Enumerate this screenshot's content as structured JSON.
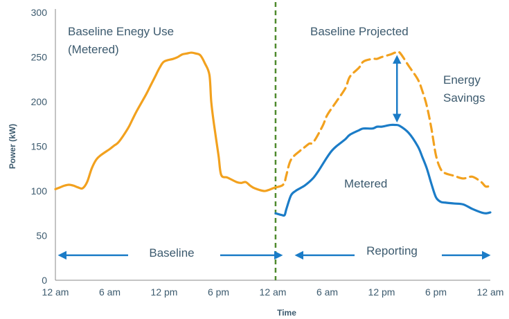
{
  "chart_data": {
    "type": "line",
    "xlabel": "Time",
    "ylabel": "Power (kW)",
    "ylim": [
      0,
      300
    ],
    "xlim": [
      0,
      48
    ],
    "y_ticks": [
      0,
      50,
      100,
      150,
      200,
      250,
      300
    ],
    "x_ticks": [
      {
        "x": 0,
        "label": "12 am"
      },
      {
        "x": 6,
        "label": "6 am"
      },
      {
        "x": 12,
        "label": "12 pm"
      },
      {
        "x": 18,
        "label": "6 pm"
      },
      {
        "x": 24,
        "label": "12 am"
      },
      {
        "x": 30,
        "label": "6 am"
      },
      {
        "x": 36,
        "label": "12 pm"
      },
      {
        "x": 42,
        "label": "6 pm"
      },
      {
        "x": 48,
        "label": "12 am"
      }
    ],
    "grid": false,
    "divider_x": 24.3,
    "series": [
      {
        "name": "Baseline Enegy Use (Metered)",
        "style": "solid",
        "color": "#f2a11e",
        "x": [
          0,
          0.5,
          1,
          1.5,
          2,
          2.5,
          3,
          3.5,
          4,
          4.5,
          5,
          6,
          6.5,
          7,
          8,
          8.5,
          9,
          10,
          10.5,
          11,
          11.5,
          12,
          13,
          13.5,
          14,
          14.5,
          15,
          15.5,
          16,
          16.5,
          17,
          17.2,
          17.5,
          18,
          18.3,
          19,
          20,
          20.5,
          21,
          21.5,
          22,
          23,
          23.5,
          24,
          24.3
        ],
        "y": [
          102,
          104,
          106,
          107,
          106,
          104,
          103,
          110,
          125,
          135,
          140,
          147,
          151,
          155,
          170,
          180,
          190,
          208,
          218,
          228,
          238,
          245,
          248,
          250,
          253,
          254,
          255,
          254,
          252,
          243,
          230,
          200,
          175,
          140,
          118,
          115,
          110,
          109,
          110,
          106,
          103,
          100,
          101,
          103,
          104
        ]
      },
      {
        "name": "Baseline Projected",
        "style": "dashed",
        "color": "#f2a11e",
        "x": [
          24.3,
          25,
          25.3,
          25.5,
          26,
          27,
          27.5,
          28,
          28.5,
          29.5,
          30,
          31,
          32,
          32.5,
          33.5,
          34,
          35,
          35.5,
          36,
          37,
          37.5,
          38,
          39,
          40,
          40.5,
          41,
          41.5,
          42,
          42.5,
          43,
          44,
          45,
          46,
          47,
          47.5,
          48
        ],
        "y": [
          104,
          106,
          110,
          118,
          135,
          145,
          149,
          153,
          155,
          173,
          185,
          200,
          215,
          228,
          238,
          245,
          248,
          248,
          250,
          253,
          255,
          255,
          240,
          225,
          212,
          195,
          170,
          140,
          125,
          120,
          117,
          114,
          116,
          110,
          105,
          106
        ]
      },
      {
        "name": "Metered",
        "style": "solid",
        "color": "#1b7cc7",
        "x": [
          24.3,
          25,
          25.3,
          25.5,
          26,
          26.5,
          27,
          27.5,
          28,
          28.5,
          29,
          29.5,
          30,
          30.5,
          31,
          32,
          32.5,
          33.5,
          34,
          35,
          35.5,
          36,
          36.5,
          37,
          37.5,
          38,
          39,
          40,
          40.5,
          41,
          41.5,
          42,
          42.5,
          43,
          44,
          45,
          46,
          47,
          47.5,
          48
        ],
        "y": [
          75,
          73,
          73,
          80,
          95,
          100,
          103,
          106,
          110,
          115,
          122,
          130,
          138,
          145,
          150,
          158,
          163,
          168,
          170,
          170,
          172,
          172,
          173,
          174,
          174,
          173,
          165,
          150,
          138,
          125,
          108,
          93,
          88,
          87,
          86,
          85,
          80,
          76,
          75,
          76
        ]
      }
    ],
    "annotations": [
      {
        "text_lines": [
          "Baseline Enegy Use",
          "(Metered)"
        ]
      },
      {
        "text_lines": [
          "Baseline Projected"
        ]
      },
      {
        "text_lines": [
          "Energy",
          "Savings"
        ]
      },
      {
        "text_lines": [
          "Metered"
        ]
      },
      {
        "text_lines": [
          "Baseline"
        ]
      },
      {
        "text_lines": [
          "Reporting"
        ]
      }
    ],
    "savings_arrow": {
      "x": 37.7,
      "y_from": 174,
      "y_to": 255
    },
    "colors": {
      "baseline": "#f2a11e",
      "metered": "#1b7cc7",
      "divider": "#4e8a2d",
      "text": "#3c5a6e",
      "arrow": "#1b7cc7"
    }
  }
}
